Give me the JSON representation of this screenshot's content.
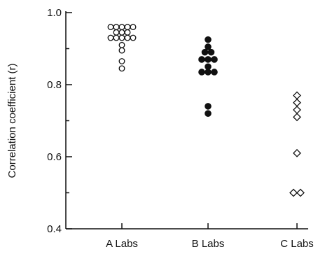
{
  "chart_data": {
    "type": "scatter",
    "title": "",
    "xlabel": "",
    "ylabel": "Correlation coefficient (r)",
    "ylim": [
      0.4,
      1.0
    ],
    "yticks_major": [
      0.4,
      0.6,
      0.8,
      1.0
    ],
    "ytick_labels": [
      "0.4",
      "0.6",
      "0.8",
      "1.0"
    ],
    "yticks_minor": [
      0.5,
      0.7,
      0.9
    ],
    "categories": [
      "A Labs",
      "B Labs",
      "C Labs"
    ],
    "grid": false,
    "series": [
      {
        "category": "A Labs",
        "marker": "open-circle",
        "values": [
          0.96,
          0.96,
          0.96,
          0.96,
          0.96,
          0.945,
          0.945,
          0.945,
          0.93,
          0.93,
          0.93,
          0.93,
          0.93,
          0.91,
          0.895,
          0.865,
          0.845
        ]
      },
      {
        "category": "B Labs",
        "marker": "filled-circle",
        "values": [
          0.925,
          0.905,
          0.89,
          0.89,
          0.87,
          0.87,
          0.87,
          0.85,
          0.835,
          0.835,
          0.835,
          0.74,
          0.72
        ]
      },
      {
        "category": "C Labs",
        "marker": "open-diamond",
        "values": [
          0.77,
          0.75,
          0.73,
          0.71,
          0.61,
          0.5,
          0.5
        ]
      }
    ],
    "colors": {
      "ink": "#111111",
      "background": "#ffffff"
    }
  }
}
